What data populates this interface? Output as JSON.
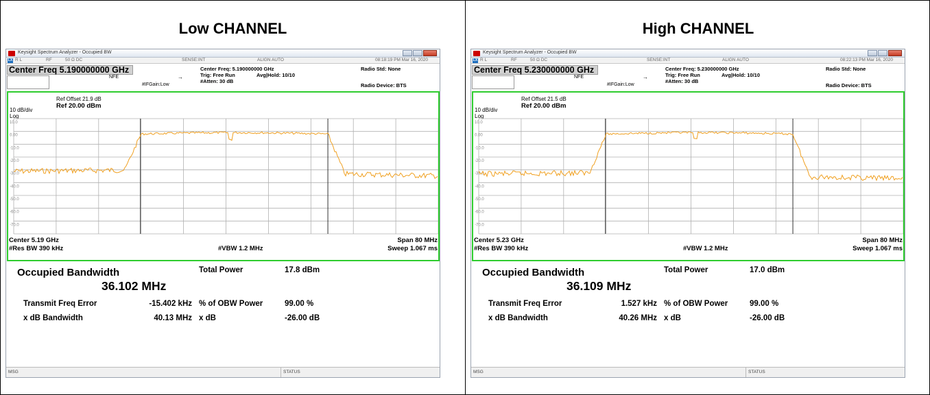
{
  "panels": [
    {
      "heading": "Low CHANNEL",
      "app_title": "Keysight Spectrum Analyzer - Occupied BW",
      "status": {
        "rl": "R L",
        "rf": "RF",
        "ohm": "50 Ω  DC",
        "sense": "SENSE:INT",
        "align": "ALIGN AUTO",
        "timestamp": "08:18:19 PM Mar 16, 2020"
      },
      "header": {
        "center_freq_label": "Center Freq 5.190000000 GHz",
        "nfe": "NFE",
        "ifgain": "#IFGain:Low",
        "center_freq_info": "Center Freq: 5.190000000 GHz",
        "trig": "Trig: Free Run",
        "avg_hold": "Avg|Hold: 10/10",
        "atten": "#Atten: 30 dB",
        "radio_std": "Radio Std: None",
        "radio_device": "Radio Device: BTS"
      },
      "plot": {
        "ref_offset": "Ref Offset 21.9 dB",
        "scale": "10 dB/div",
        "ref_level": "Ref 20.00 dBm",
        "log": "Log",
        "y_ticks": [
          "10.0",
          "0.00",
          "-10.0",
          "-20.0",
          "-30.0",
          "-40.0",
          "-50.0",
          "-60.0",
          "-70.0"
        ],
        "center": "Center  5.19 GHz",
        "res_bw": "#Res BW  390 kHz",
        "vbw": "#VBW  1.2 MHz",
        "span": "Span 80 MHz",
        "sweep": "Sweep  1.067 ms"
      },
      "results": {
        "occupied_bw_label": "Occupied Bandwidth",
        "occupied_bw_value": "36.102 MHz",
        "total_power_label": "Total Power",
        "total_power_value": "17.8 dBm",
        "transmit_freq_error_label": "Transmit Freq Error",
        "transmit_freq_error_value": "-15.402 kHz",
        "obw_power_label": "% of OBW Power",
        "obw_power_value": "99.00 %",
        "xdb_bw_label": "x dB Bandwidth",
        "xdb_bw_value": "40.13 MHz",
        "xdb_label": "x dB",
        "xdb_value": "-26.00 dB"
      },
      "msg": "MSG",
      "status_label": "STATUS",
      "trace_color": "#f0a020",
      "frame_color": "#2ecc2e"
    },
    {
      "heading": "High CHANNEL",
      "app_title": "Keysight Spectrum Analyzer - Occupied BW",
      "status": {
        "rl": "R L",
        "rf": "RF",
        "ohm": "50 Ω  DC",
        "sense": "SENSE:INT",
        "align": "ALIGN AUTO",
        "timestamp": "08:22:13 PM Mar 16, 2020"
      },
      "header": {
        "center_freq_label": "Center Freq 5.230000000 GHz",
        "nfe": "NFE",
        "ifgain": "#IFGain:Low",
        "center_freq_info": "Center Freq: 5.230000000 GHz",
        "trig": "Trig: Free Run",
        "avg_hold": "Avg|Hold: 10/10",
        "atten": "#Atten: 30 dB",
        "radio_std": "Radio Std: None",
        "radio_device": "Radio Device: BTS"
      },
      "plot": {
        "ref_offset": "Ref Offset 21.5 dB",
        "scale": "10 dB/div",
        "ref_level": "Ref 20.00 dBm",
        "log": "Log",
        "y_ticks": [
          "10.0",
          "0.00",
          "-10.0",
          "-20.0",
          "-30.0",
          "-40.0",
          "-50.0",
          "-60.0",
          "-70.0"
        ],
        "center": "Center  5.23 GHz",
        "res_bw": "#Res BW  390 kHz",
        "vbw": "#VBW  1.2 MHz",
        "span": "Span 80 MHz",
        "sweep": "Sweep  1.067 ms"
      },
      "results": {
        "occupied_bw_label": "Occupied Bandwidth",
        "occupied_bw_value": "36.109 MHz",
        "total_power_label": "Total Power",
        "total_power_value": "17.0 dBm",
        "transmit_freq_error_label": "Transmit Freq Error",
        "transmit_freq_error_value": "1.527 kHz",
        "obw_power_label": "% of OBW Power",
        "obw_power_value": "99.00 %",
        "xdb_bw_label": "x dB Bandwidth",
        "xdb_bw_value": "40.26 MHz",
        "xdb_label": "x dB",
        "xdb_value": "-26.00 dB"
      },
      "msg": "MSG",
      "status_label": "STATUS",
      "trace_color": "#f0a020",
      "frame_color": "#2ecc2e"
    }
  ]
}
